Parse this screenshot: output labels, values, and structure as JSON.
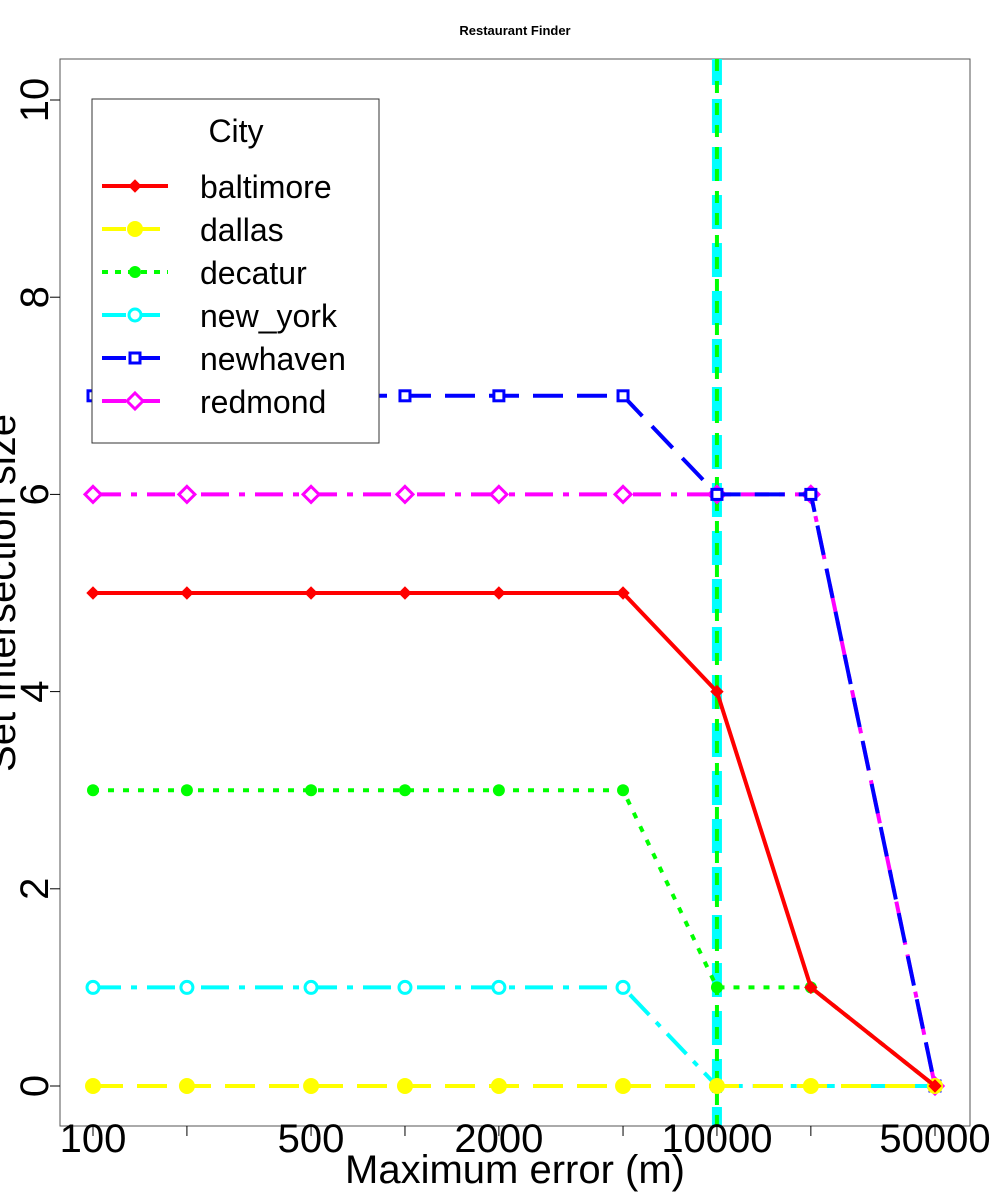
{
  "chart_data": {
    "type": "line",
    "title": "Restaurant Finder",
    "xlabel": "Maximum error (m)",
    "ylabel": "Set intersection size",
    "x_scale": "log",
    "x": [
      100,
      200,
      500,
      1000,
      2000,
      5000,
      10000,
      20000,
      50000
    ],
    "xticks": [
      100,
      200,
      500,
      1000,
      2000,
      5000,
      10000,
      20000,
      50000
    ],
    "xtick_labels": [
      "100",
      "",
      "500",
      "",
      "2000",
      "",
      "10000",
      "",
      "50000"
    ],
    "yticks": [
      0,
      2,
      4,
      6,
      8,
      10
    ],
    "ytick_labels": [
      "0",
      "2",
      "4",
      "6",
      "8",
      "10"
    ],
    "ylim": [
      -0.4,
      10.4
    ],
    "grid": false,
    "legend": {
      "title": "City",
      "position": "top-left"
    },
    "series": [
      {
        "name": "baltimore",
        "color": "#ff0000",
        "dash": "solid",
        "marker": "diamond-filled",
        "values": [
          5,
          5,
          5,
          5,
          5,
          5,
          4,
          1,
          0
        ]
      },
      {
        "name": "dallas",
        "color": "#ffff00",
        "dash": "longdash",
        "marker": "circle-filled-large",
        "values": [
          0,
          0,
          0,
          0,
          0,
          0,
          0,
          0,
          0
        ]
      },
      {
        "name": "decatur",
        "color": "#00ff00",
        "dash": "dotted",
        "marker": "circle-filled",
        "values": [
          3,
          3,
          3,
          3,
          3,
          3,
          1,
          1,
          0
        ]
      },
      {
        "name": "new_york",
        "color": "#00ffff",
        "dash": "dashdot",
        "marker": "circle-open",
        "values": [
          1,
          1,
          1,
          1,
          1,
          1,
          0,
          0,
          0
        ]
      },
      {
        "name": "newhaven",
        "color": "#0000ff",
        "dash": "longdash",
        "marker": "square-open",
        "values": [
          7,
          7,
          7,
          7,
          7,
          7,
          6,
          6,
          0
        ]
      },
      {
        "name": "redmond",
        "color": "#ff00ff",
        "dash": "dashdot",
        "marker": "diamond-open",
        "values": [
          6,
          6,
          6,
          6,
          6,
          6,
          6,
          6,
          0
        ]
      }
    ],
    "reference_line": {
      "x": 10000,
      "orientation": "vertical",
      "colors": [
        "#00ff00",
        "#00ffff"
      ]
    }
  }
}
